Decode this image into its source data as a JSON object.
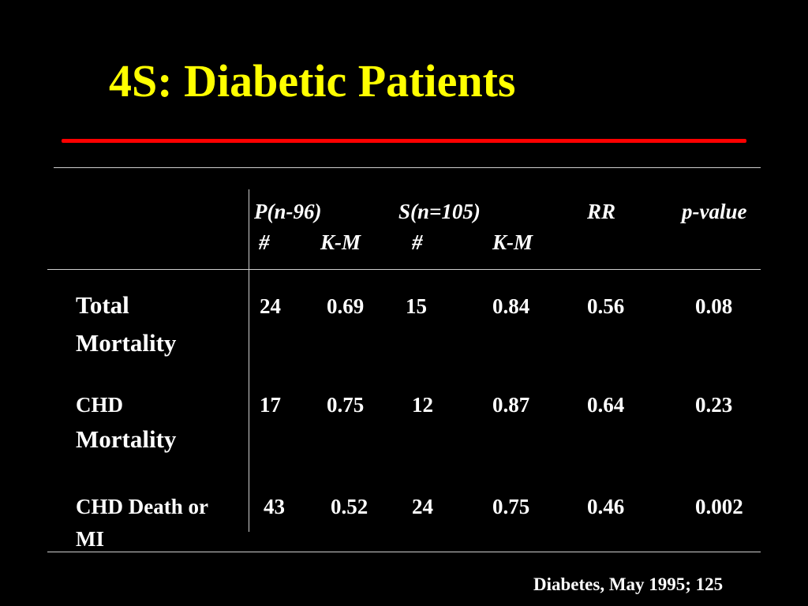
{
  "slide": {
    "title": "4S:  Diabetic Patients",
    "citation": "Diabetes, May 1995; 125",
    "accent_color": "#ffff00",
    "rule_color": "#ff0000"
  },
  "table": {
    "headers": {
      "placebo_group": "P(n-96)",
      "simva_group": "S(n=105)",
      "rr": "RR",
      "p_value": "p-value",
      "placebo_count": "#",
      "placebo_km": "K-M",
      "simva_count": "#",
      "simva_km": "K-M"
    },
    "rows": [
      {
        "label_line1": "Total",
        "label_line2": "Mortality",
        "p_count": "24",
        "p_km": "0.69",
        "s_count": "15",
        "s_km": "0.84",
        "rr": "0.56",
        "p_value": "0.08"
      },
      {
        "label_line1": "CHD",
        "label_line2": "Mortality",
        "p_count": "17",
        "p_km": "0.75",
        "s_count": "12",
        "s_km": "0.87",
        "rr": "0.64",
        "p_value": "0.23"
      },
      {
        "label_line1": "CHD Death or",
        "label_line2": "MI",
        "p_count": "43",
        "p_km": "0.52",
        "s_count": "24",
        "s_km": "0.75",
        "rr": "0.46",
        "p_value": "0.002"
      }
    ]
  }
}
